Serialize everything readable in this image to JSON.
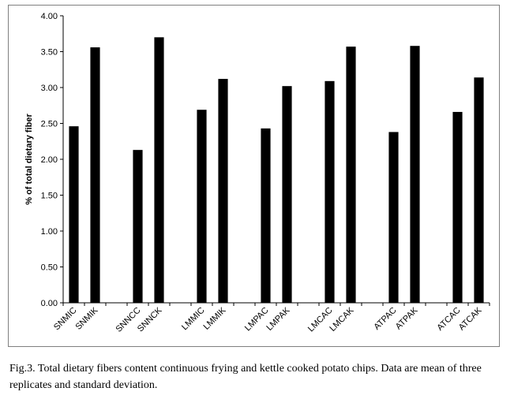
{
  "chart_data": {
    "type": "bar",
    "categories": [
      "SNMIC",
      "SNMIK",
      "SNNCC",
      "SNNCK",
      "LMMIC",
      "LMMIK",
      "LMPAC",
      "LMPAK",
      "LMCAC",
      "LMCAK",
      "ATPAC",
      "ATPAK",
      "ATCAC",
      "ATCAK"
    ],
    "values": [
      2.46,
      3.56,
      2.13,
      3.7,
      2.69,
      3.12,
      2.43,
      3.02,
      3.09,
      3.57,
      2.38,
      3.58,
      2.66,
      3.14
    ],
    "title": "",
    "xlabel": "",
    "ylabel": "% of total dietary fiber",
    "ylim": [
      0,
      4
    ],
    "yticks": [
      "0.00",
      "0.50",
      "1.00",
      "1.50",
      "2.00",
      "2.50",
      "3.00",
      "3.50",
      "4.00"
    ],
    "grid": false,
    "bar_color": "#000000"
  },
  "caption": "Fig.3. Total dietary fibers content continuous frying and kettle cooked potato chips. Data are mean of three replicates and standard deviation."
}
